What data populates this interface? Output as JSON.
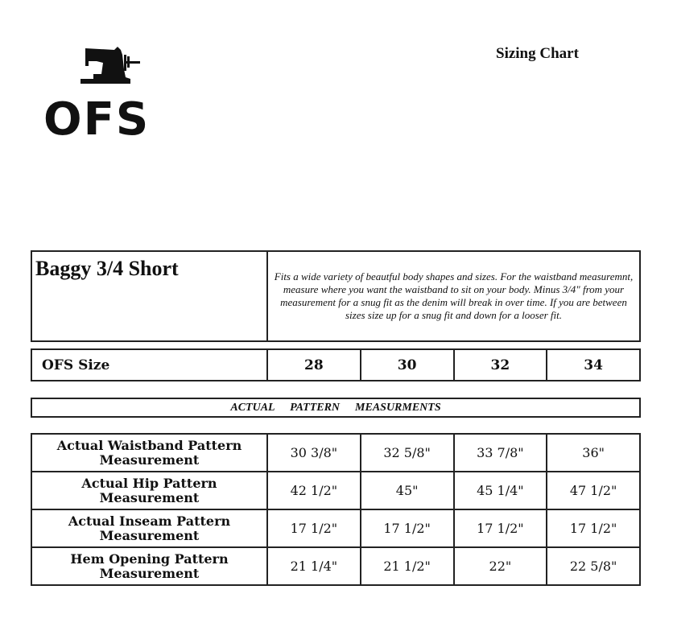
{
  "logo": {
    "text": "OFS",
    "icon": "sewing-machine-icon"
  },
  "title": "Sizing Chart",
  "product": {
    "name": "Baggy 3/4 Short",
    "description": "Fits a wide variety of beautful body shapes and sizes. For the waistband measuremnt, measure where you want the waistband to sit on your body. Minus 3/4\" from your measurement for a snug fit as the denim will break in over time. If you are between sizes size up for a snug fit and down for a looser fit."
  },
  "sizes": {
    "label": "OFS Size",
    "values": [
      "28",
      "30",
      "32",
      "34"
    ]
  },
  "section_header": "ACTUAL  PATTERN  MEASURMENTS",
  "measurements": [
    {
      "label": "Actual Waistband Pattern Measurement",
      "values": [
        "30 3/8\"",
        "32 5/8\"",
        "33 7/8\"",
        "36\""
      ]
    },
    {
      "label": "Actual Hip Pattern Measurement",
      "values": [
        "42 1/2\"",
        "45\"",
        "45 1/4\"",
        "47 1/2\""
      ]
    },
    {
      "label": "Actual Inseam Pattern Measurement",
      "values": [
        "17 1/2\"",
        "17 1/2\"",
        "17 1/2\"",
        "17 1/2\""
      ]
    },
    {
      "label": "Hem Opening Pattern Measurement",
      "values": [
        "21 1/4\"",
        "21 1/2\"",
        "22\"",
        "22 5/8\""
      ]
    }
  ]
}
